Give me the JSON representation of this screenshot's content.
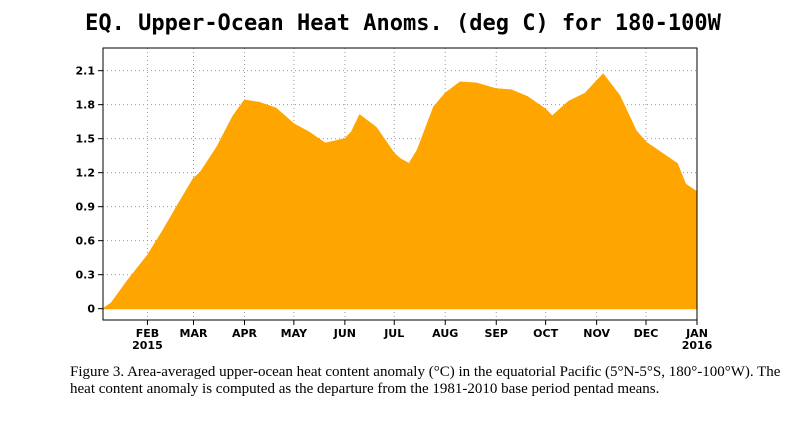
{
  "chart_data": {
    "type": "area",
    "title": "EQ. Upper-Ocean Heat Anoms. (deg C) for 180-100W",
    "fill_color": "#ffa500",
    "grid": true,
    "grid_style": "dotted",
    "ylim": [
      -0.1,
      2.3
    ],
    "y_ticks": [
      "0",
      "0.3",
      "0.6",
      "0.9",
      "1.2",
      "1.5",
      "1.8",
      "2.1"
    ],
    "x_ticks": [
      {
        "label": "FEB",
        "sub": "2015",
        "date": "2015-02-01"
      },
      {
        "label": "MAR",
        "sub": "",
        "date": "2015-03-01"
      },
      {
        "label": "APR",
        "sub": "",
        "date": "2015-04-01"
      },
      {
        "label": "MAY",
        "sub": "",
        "date": "2015-05-01"
      },
      {
        "label": "JUN",
        "sub": "",
        "date": "2015-06-01"
      },
      {
        "label": "JUL",
        "sub": "",
        "date": "2015-07-01"
      },
      {
        "label": "AUG",
        "sub": "",
        "date": "2015-08-01"
      },
      {
        "label": "SEP",
        "sub": "",
        "date": "2015-09-01"
      },
      {
        "label": "OCT",
        "sub": "",
        "date": "2015-10-01"
      },
      {
        "label": "NOV",
        "sub": "",
        "date": "2015-11-01"
      },
      {
        "label": "DEC",
        "sub": "",
        "date": "2015-12-01"
      },
      {
        "label": "JAN",
        "sub": "2016",
        "date": "2016-01-01"
      }
    ],
    "x_range": [
      "2015-01-05",
      "2016-01-01"
    ],
    "series": [
      {
        "x": [
          "2015-01-05",
          "2015-01-10",
          "2015-01-20",
          "2015-02-01",
          "2015-02-10",
          "2015-02-20",
          "2015-03-01",
          "2015-03-05",
          "2015-03-15",
          "2015-03-25",
          "2015-04-01",
          "2015-04-10",
          "2015-04-20",
          "2015-05-01",
          "2015-05-10",
          "2015-05-20",
          "2015-06-01",
          "2015-06-05",
          "2015-06-10",
          "2015-06-20",
          "2015-07-01",
          "2015-07-05",
          "2015-07-10",
          "2015-07-15",
          "2015-07-25",
          "2015-08-01",
          "2015-08-10",
          "2015-08-20",
          "2015-09-01",
          "2015-09-10",
          "2015-09-20",
          "2015-10-01",
          "2015-10-05",
          "2015-10-15",
          "2015-10-25",
          "2015-11-01",
          "2015-11-05",
          "2015-11-15",
          "2015-11-25",
          "2015-12-01",
          "2015-12-10",
          "2015-12-20",
          "2015-12-25",
          "2016-01-01"
        ],
        "y": [
          0.0,
          0.05,
          0.25,
          0.47,
          0.68,
          0.93,
          1.15,
          1.2,
          1.42,
          1.7,
          1.84,
          1.82,
          1.77,
          1.63,
          1.56,
          1.46,
          1.5,
          1.56,
          1.71,
          1.6,
          1.37,
          1.32,
          1.28,
          1.4,
          1.78,
          1.9,
          2.0,
          1.99,
          1.94,
          1.93,
          1.87,
          1.76,
          1.7,
          1.83,
          1.9,
          2.01,
          2.07,
          1.88,
          1.57,
          1.47,
          1.38,
          1.28,
          1.1,
          1.03
        ]
      }
    ]
  },
  "caption": "Figure 3. Area-averaged upper-ocean heat content anomaly (°C) in the equatorial Pacific (5°N-5°S, 180°-100°W). The heat content anomaly is computed as the departure from the 1981-2010 base period pentad means."
}
